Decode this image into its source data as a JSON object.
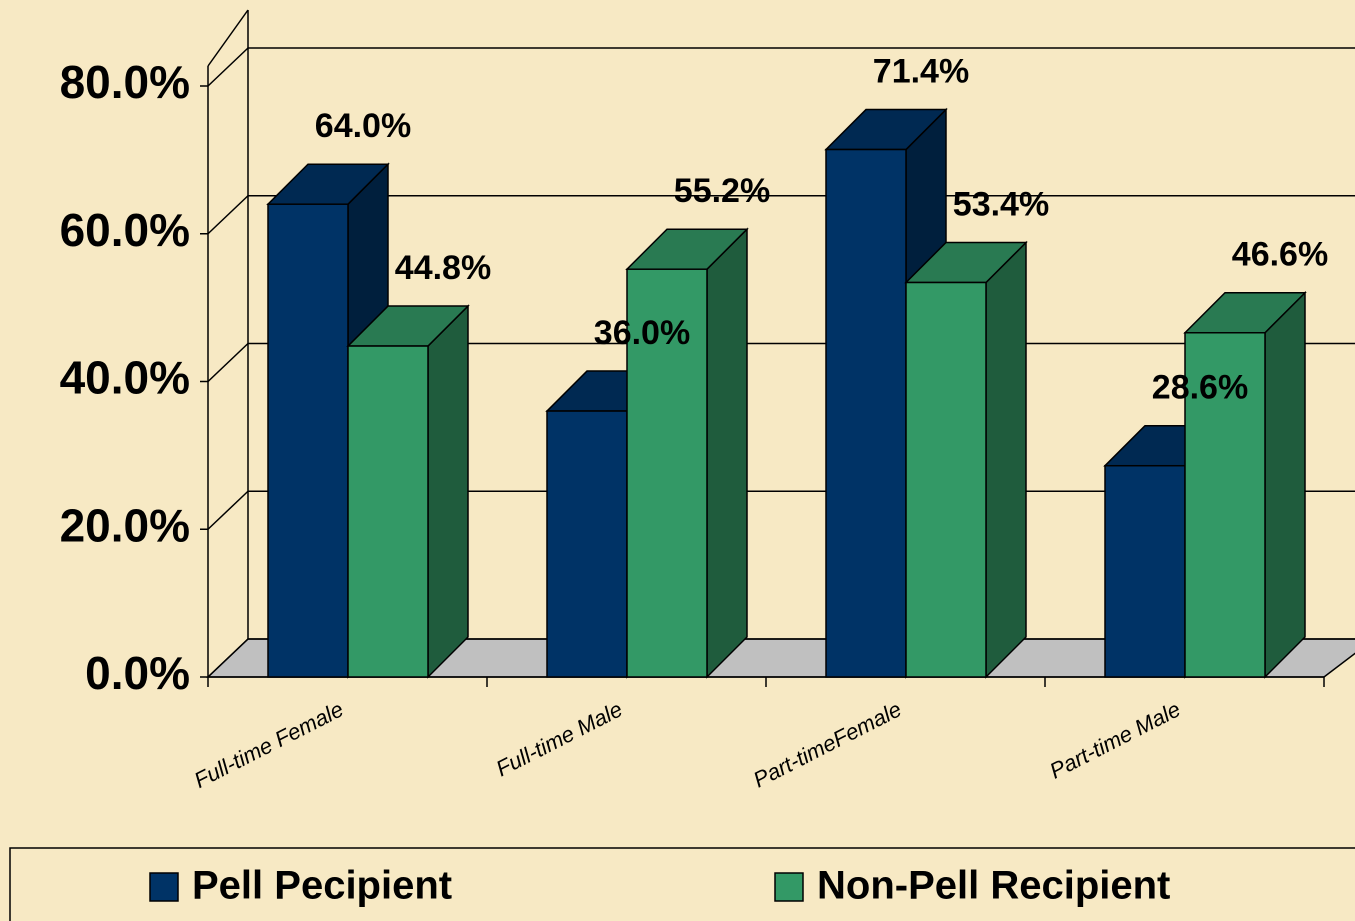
{
  "chart_data": {
    "type": "bar3d",
    "categories": [
      "Full-time Female",
      "Full-time Male",
      "Part-timeFemale",
      "Part-time Male"
    ],
    "series": [
      {
        "name": "Pell Pecipient",
        "color": "#003366",
        "values": [
          64,
          36,
          71.4,
          28.6
        ],
        "value_labels": [
          "64.0%",
          "36.0%",
          "71.4%",
          "28.6%"
        ]
      },
      {
        "name": "Non-Pell Recipient",
        "color": "#339966",
        "values": [
          44.8,
          55.2,
          53.4,
          46.6
        ],
        "value_labels": [
          "44.8%",
          "55.2%",
          "53.4%",
          "46.6%"
        ]
      }
    ],
    "ylim": [
      0,
      80
    ],
    "yticks": [
      {
        "value": 0,
        "label": "0.0%"
      },
      {
        "value": 20,
        "label": "20.0%"
      },
      {
        "value": 40,
        "label": "40.0%"
      },
      {
        "value": 60,
        "label": "60.0%"
      },
      {
        "value": 80,
        "label": "80.0%"
      }
    ],
    "grid": true,
    "legend": "bottom"
  }
}
